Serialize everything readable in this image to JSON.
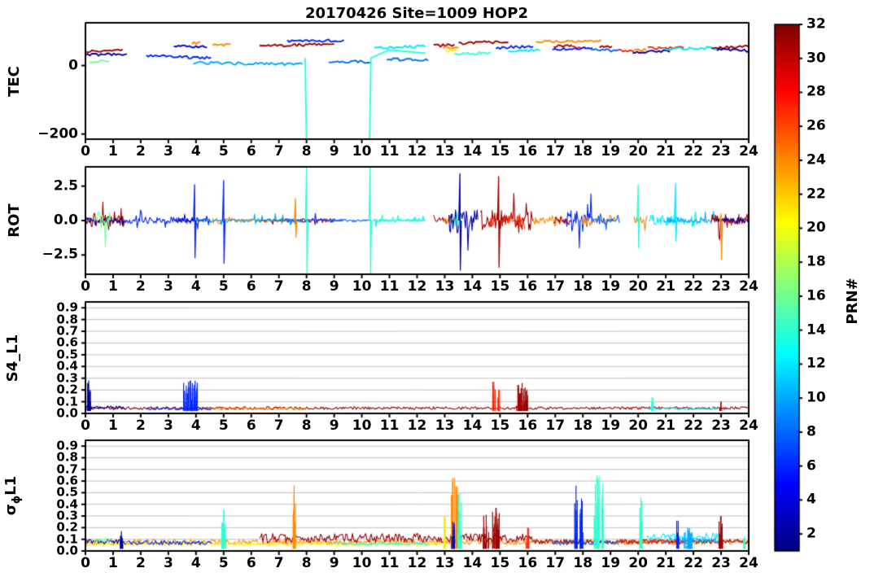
{
  "chart_data": {
    "type": "line",
    "title": "20170426 Site=1009 HOP2",
    "xlabel": "",
    "x_range": [
      0,
      24
    ],
    "x_ticks": [
      0,
      1,
      2,
      3,
      4,
      5,
      6,
      7,
      8,
      9,
      10,
      11,
      12,
      13,
      14,
      15,
      16,
      17,
      18,
      19,
      20,
      21,
      22,
      23,
      24
    ],
    "prn_range": [
      1,
      32
    ],
    "colormap": "jet",
    "colorbar": {
      "label": "PRN#",
      "ticks": [
        2,
        4,
        6,
        8,
        10,
        12,
        14,
        16,
        18,
        20,
        22,
        24,
        26,
        28,
        30,
        32
      ]
    },
    "panels": [
      {
        "id": "tec",
        "ylabel": "TEC",
        "ylim": [
          -215,
          125
        ],
        "yticks": [
          {
            "v": 0,
            "label": "0"
          },
          {
            "v": -200,
            "label": "−200"
          }
        ],
        "grid": false,
        "segments": [
          {
            "p": 31,
            "x0": 0.0,
            "x1": 1.35,
            "y0": 42,
            "y1": 45
          },
          {
            "p": 2,
            "x0": 0.0,
            "x1": 1.5,
            "y0": 31,
            "y1": 34
          },
          {
            "p": 16,
            "x0": 0.15,
            "x1": 0.85,
            "y0": 11,
            "y1": 13
          },
          {
            "p": 6,
            "x0": 2.2,
            "x1": 4.55,
            "y0": 28,
            "y1": 23
          },
          {
            "p": 4,
            "x0": 3.2,
            "x1": 4.4,
            "y0": 55,
            "y1": 56
          },
          {
            "p": 24,
            "x0": 3.85,
            "x1": 4.15,
            "y0": 66,
            "y1": 66
          },
          {
            "p": 24,
            "x0": 4.6,
            "x1": 5.25,
            "y0": 63,
            "y1": 61
          },
          {
            "p": 10,
            "x0": 3.9,
            "x1": 7.85,
            "y0": 8,
            "y1": 4
          },
          {
            "p": 31,
            "x0": 6.3,
            "x1": 9.0,
            "y0": 58,
            "y1": 62
          },
          {
            "p": 6,
            "x0": 7.3,
            "x1": 9.35,
            "y0": 71,
            "y1": 73
          },
          {
            "p": 8,
            "x0": 8.8,
            "x1": 10.35,
            "y0": 13,
            "y1": 10
          },
          {
            "p": 12,
            "x0": 10.45,
            "x1": 12.3,
            "y0": 52,
            "y1": 56
          },
          {
            "p": 8,
            "x0": 10.9,
            "x1": 12.4,
            "y0": 19,
            "y1": 16
          },
          {
            "p": 31,
            "x0": 12.6,
            "x1": 13.35,
            "y0": 58,
            "y1": 60
          },
          {
            "p": 24,
            "x0": 12.95,
            "x1": 13.5,
            "y0": 52,
            "y1": 50
          },
          {
            "p": 31,
            "x0": 13.5,
            "x1": 15.3,
            "y0": 64,
            "y1": 71
          },
          {
            "p": 14,
            "x0": 13.35,
            "x1": 14.65,
            "y0": 32,
            "y1": 38
          },
          {
            "p": 21,
            "x0": 13.05,
            "x1": 13.45,
            "y0": 44,
            "y1": 44
          },
          {
            "p": 6,
            "x0": 14.85,
            "x1": 16.2,
            "y0": 52,
            "y1": 56
          },
          {
            "p": 12,
            "x0": 15.3,
            "x1": 16.45,
            "y0": 42,
            "y1": 46
          },
          {
            "p": 24,
            "x0": 16.3,
            "x1": 18.65,
            "y0": 69,
            "y1": 72
          },
          {
            "p": 31,
            "x0": 16.95,
            "x1": 17.6,
            "y0": 57,
            "y1": 58
          },
          {
            "p": 27,
            "x0": 17.6,
            "x1": 18.1,
            "y0": 54,
            "y1": 54
          },
          {
            "p": 6,
            "x0": 16.9,
            "x1": 18.35,
            "y0": 48,
            "y1": 50
          },
          {
            "p": 31,
            "x0": 18.6,
            "x1": 19.05,
            "y0": 56,
            "y1": 54
          },
          {
            "p": 8,
            "x0": 18.3,
            "x1": 19.35,
            "y0": 46,
            "y1": 44
          },
          {
            "p": 27,
            "x0": 19.3,
            "x1": 19.85,
            "y0": 44,
            "y1": 43
          },
          {
            "p": 24,
            "x0": 19.85,
            "x1": 20.3,
            "y0": 45,
            "y1": 46
          },
          {
            "p": 27,
            "x0": 20.35,
            "x1": 21.65,
            "y0": 50,
            "y1": 52
          },
          {
            "p": 2,
            "x0": 19.8,
            "x1": 21.15,
            "y0": 40,
            "y1": 42
          },
          {
            "p": 12,
            "x0": 20.9,
            "x1": 23.05,
            "y0": 48,
            "y1": 52
          },
          {
            "p": 31,
            "x0": 22.65,
            "x1": 24.0,
            "y0": 52,
            "y1": 56
          },
          {
            "p": 2,
            "x0": 22.85,
            "x1": 24.0,
            "y0": 46,
            "y1": 44
          }
        ],
        "paths": [
          {
            "p": 14,
            "pts": [
              [
                7.95,
                22
              ],
              [
                8.0,
                -230
              ],
              [
                10.28,
                -230
              ],
              [
                10.33,
                22
              ],
              [
                11.0,
                46
              ],
              [
                12.3,
                36
              ]
            ]
          }
        ]
      },
      {
        "id": "rot",
        "ylabel": "ROT",
        "ylim": [
          -3.9,
          3.9
        ],
        "yticks": [
          {
            "v": 2.5,
            "label": "2.5"
          },
          {
            "v": 0,
            "label": "0.0"
          },
          {
            "v": -2.5,
            "label": "−2.5"
          }
        ],
        "grid": false,
        "noise": [
          {
            "p": 31,
            "x0": 0.0,
            "x1": 1.45,
            "amp": 1.0
          },
          {
            "p": 2,
            "x0": 0.0,
            "x1": 1.5,
            "amp": 0.5
          },
          {
            "p": 16,
            "x0": 0.3,
            "x1": 0.95,
            "amp": 1.4
          },
          {
            "p": 6,
            "x0": 1.45,
            "x1": 4.55,
            "amp": 0.5
          },
          {
            "p": 4,
            "x0": 3.2,
            "x1": 4.4,
            "amp": 0.45
          },
          {
            "p": 24,
            "x0": 4.6,
            "x1": 5.3,
            "amp": 0.9
          },
          {
            "p": 24,
            "x0": 5.3,
            "x1": 7.9,
            "amp": 0.3
          },
          {
            "p": 31,
            "x0": 6.3,
            "x1": 9.0,
            "amp": 0.3
          },
          {
            "p": 6,
            "x0": 7.3,
            "x1": 9.35,
            "amp": 0.3
          },
          {
            "p": 10,
            "x0": 3.9,
            "x1": 7.85,
            "amp": 0.3
          },
          {
            "p": 8,
            "x0": 8.8,
            "x1": 10.35,
            "amp": 0.25
          },
          {
            "p": 12,
            "x0": 10.45,
            "x1": 12.3,
            "amp": 0.3
          },
          {
            "p": 14,
            "x0": 10.35,
            "x1": 12.3,
            "amp": 0.25
          },
          {
            "p": 31,
            "x0": 12.6,
            "x1": 13.4,
            "amp": 0.5
          },
          {
            "p": 24,
            "x0": 12.95,
            "x1": 13.55,
            "amp": 0.5
          },
          {
            "p": 2,
            "x0": 13.15,
            "x1": 14.2,
            "amp": 2.1
          },
          {
            "p": 14,
            "x0": 13.25,
            "x1": 13.55,
            "amp": 1.4
          },
          {
            "p": 31,
            "x0": 14.3,
            "x1": 16.2,
            "amp": 1.9
          },
          {
            "p": 27,
            "x0": 14.6,
            "x1": 15.9,
            "amp": 1.2
          },
          {
            "p": 24,
            "x0": 16.2,
            "x1": 17.2,
            "amp": 0.9
          },
          {
            "p": 6,
            "x0": 17.3,
            "x1": 18.35,
            "amp": 1.5
          },
          {
            "p": 31,
            "x0": 16.95,
            "x1": 17.6,
            "amp": 0.6
          },
          {
            "p": 24,
            "x0": 17.9,
            "x1": 19.2,
            "amp": 0.8
          },
          {
            "p": 8,
            "x0": 18.3,
            "x1": 19.35,
            "amp": 0.7
          },
          {
            "p": 24,
            "x0": 19.85,
            "x1": 20.35,
            "amp": 0.6
          },
          {
            "p": 12,
            "x0": 20.4,
            "x1": 22.3,
            "amp": 0.9
          },
          {
            "p": 10,
            "x0": 20.9,
            "x1": 23.05,
            "amp": 0.5
          },
          {
            "p": 31,
            "x0": 22.65,
            "x1": 24.0,
            "amp": 1.0
          },
          {
            "p": 2,
            "x0": 22.85,
            "x1": 24.0,
            "amp": 0.5
          }
        ],
        "spikes": [
          {
            "p": 6,
            "x": 3.95,
            "up": 2.6,
            "down": -2.7
          },
          {
            "p": 6,
            "x": 5.0,
            "up": 2.9,
            "down": -3.1
          },
          {
            "p": 24,
            "x": 7.6,
            "up": 1.6,
            "down": -1.2
          },
          {
            "p": 14,
            "x": 8.0,
            "up": 3.9,
            "down": -3.9
          },
          {
            "p": 14,
            "x": 10.3,
            "up": 3.9,
            "down": -3.9
          },
          {
            "p": 2,
            "x": 13.55,
            "up": 3.4,
            "down": -3.6
          },
          {
            "p": 31,
            "x": 14.95,
            "up": 3.2,
            "down": -3.4
          },
          {
            "p": 14,
            "x": 20.0,
            "up": 2.6,
            "down": -2.0
          },
          {
            "p": 12,
            "x": 21.35,
            "up": 2.7,
            "down": -1.5
          },
          {
            "p": 24,
            "x": 23.0,
            "up": 0.5,
            "down": -2.8
          }
        ]
      },
      {
        "id": "s4",
        "ylabel": "S4_L1",
        "ylim": [
          0,
          0.95
        ],
        "yticks": [
          {
            "v": 0.0,
            "label": "0.0"
          },
          {
            "v": 0.1,
            "label": "0.1"
          },
          {
            "v": 0.2,
            "label": "0.2"
          },
          {
            "v": 0.3,
            "label": "0.3"
          },
          {
            "v": 0.4,
            "label": "0.4"
          },
          {
            "v": 0.5,
            "label": "0.5"
          },
          {
            "v": 0.6,
            "label": "0.6"
          },
          {
            "v": 0.7,
            "label": "0.7"
          },
          {
            "v": 0.8,
            "label": "0.8"
          },
          {
            "v": 0.9,
            "label": "0.9"
          }
        ],
        "grid": true,
        "baselines": [
          {
            "p": 31,
            "x0": 0.0,
            "x1": 24.0,
            "y": 0.045,
            "amp": 0.012
          },
          {
            "p": 24,
            "x0": 4.6,
            "x1": 8.0,
            "y": 0.04,
            "amp": 0.01
          },
          {
            "p": 6,
            "x0": 2.2,
            "x1": 4.6,
            "y": 0.04,
            "amp": 0.012
          },
          {
            "p": 2,
            "x0": 0.0,
            "x1": 1.5,
            "y": 0.05,
            "amp": 0.015
          },
          {
            "p": 12,
            "x0": 20.3,
            "x1": 23.0,
            "y": 0.04,
            "amp": 0.01
          }
        ],
        "bursts": [
          {
            "p": 2,
            "x": 0.12,
            "w": 0.15,
            "h": 0.28
          },
          {
            "p": 6,
            "x": 3.8,
            "w": 0.5,
            "h": 0.28
          },
          {
            "p": 27,
            "x": 14.78,
            "w": 0.1,
            "h": 0.27
          },
          {
            "p": 27,
            "x": 14.95,
            "w": 0.08,
            "h": 0.2
          },
          {
            "p": 31,
            "x": 15.8,
            "w": 0.4,
            "h": 0.26
          },
          {
            "p": 14,
            "x": 20.5,
            "w": 0.1,
            "h": 0.14
          },
          {
            "p": 31,
            "x": 23.0,
            "w": 0.1,
            "h": 0.1
          }
        ]
      },
      {
        "id": "sigma",
        "ylabel": "σϕL1",
        "ylabel_parts": {
          "main": "σ",
          "sub": "ϕ",
          "rest": "L1"
        },
        "ylim": [
          0,
          0.95
        ],
        "yticks": [
          {
            "v": 0.0,
            "label": "0.0"
          },
          {
            "v": 0.1,
            "label": "0.1"
          },
          {
            "v": 0.2,
            "label": "0.2"
          },
          {
            "v": 0.3,
            "label": "0.3"
          },
          {
            "v": 0.4,
            "label": "0.4"
          },
          {
            "v": 0.5,
            "label": "0.5"
          },
          {
            "v": 0.6,
            "label": "0.6"
          },
          {
            "v": 0.7,
            "label": "0.7"
          },
          {
            "v": 0.8,
            "label": "0.8"
          },
          {
            "v": 0.9,
            "label": "0.9"
          }
        ],
        "grid": true,
        "baselines": [
          {
            "p": 24,
            "x0": 0.0,
            "x1": 24.0,
            "y": 0.075,
            "amp": 0.022
          },
          {
            "p": 21,
            "x0": 0.0,
            "x1": 13.3,
            "y": 0.06,
            "amp": 0.015
          },
          {
            "p": 31,
            "x0": 6.3,
            "x1": 16.2,
            "y": 0.11,
            "amp": 0.04
          },
          {
            "p": 31,
            "x0": 16.2,
            "x1": 24.0,
            "y": 0.08,
            "amp": 0.02
          },
          {
            "p": 2,
            "x0": 0.0,
            "x1": 1.5,
            "y": 0.08,
            "amp": 0.02
          },
          {
            "p": 16,
            "x0": 0.3,
            "x1": 0.95,
            "y": 0.09,
            "amp": 0.03
          },
          {
            "p": 6,
            "x0": 1.5,
            "x1": 4.6,
            "y": 0.07,
            "amp": 0.02
          },
          {
            "p": 14,
            "x0": 9.0,
            "x1": 12.5,
            "y": 0.06,
            "amp": 0.015
          },
          {
            "p": 12,
            "x0": 20.3,
            "x1": 23.0,
            "y": 0.12,
            "amp": 0.035
          },
          {
            "p": 10,
            "x0": 20.9,
            "x1": 23.0,
            "y": 0.09,
            "amp": 0.025
          },
          {
            "p": 8,
            "x0": 16.9,
            "x1": 19.3,
            "y": 0.07,
            "amp": 0.02
          },
          {
            "p": 27,
            "x0": 19.3,
            "x1": 21.7,
            "y": 0.08,
            "amp": 0.02
          }
        ],
        "bursts": [
          {
            "p": 2,
            "x": 1.3,
            "w": 0.12,
            "h": 0.17
          },
          {
            "p": 14,
            "x": 5.0,
            "w": 0.15,
            "h": 0.36
          },
          {
            "p": 24,
            "x": 7.55,
            "w": 0.1,
            "h": 0.56
          },
          {
            "p": 21,
            "x": 13.0,
            "w": 0.1,
            "h": 0.3
          },
          {
            "p": 24,
            "x": 13.35,
            "w": 0.25,
            "h": 0.63
          },
          {
            "p": 14,
            "x": 13.55,
            "w": 0.15,
            "h": 0.5
          },
          {
            "p": 2,
            "x": 13.3,
            "w": 0.1,
            "h": 0.25
          },
          {
            "p": 31,
            "x": 14.5,
            "w": 0.22,
            "h": 0.31
          },
          {
            "p": 31,
            "x": 14.85,
            "w": 0.25,
            "h": 0.37
          },
          {
            "p": 27,
            "x": 16.0,
            "w": 0.1,
            "h": 0.2
          },
          {
            "p": 6,
            "x": 17.75,
            "w": 0.12,
            "h": 0.56
          },
          {
            "p": 6,
            "x": 17.95,
            "w": 0.1,
            "h": 0.45
          },
          {
            "p": 14,
            "x": 18.5,
            "w": 0.18,
            "h": 0.65
          },
          {
            "p": 14,
            "x": 18.72,
            "w": 0.1,
            "h": 0.58
          },
          {
            "p": 14,
            "x": 20.1,
            "w": 0.12,
            "h": 0.46
          },
          {
            "p": 6,
            "x": 21.45,
            "w": 0.12,
            "h": 0.26
          },
          {
            "p": 10,
            "x": 21.8,
            "w": 0.3,
            "h": 0.2
          },
          {
            "p": 31,
            "x": 23.0,
            "w": 0.15,
            "h": 0.3
          },
          {
            "p": 14,
            "x": 23.85,
            "w": 0.1,
            "h": 0.12
          }
        ]
      }
    ]
  }
}
